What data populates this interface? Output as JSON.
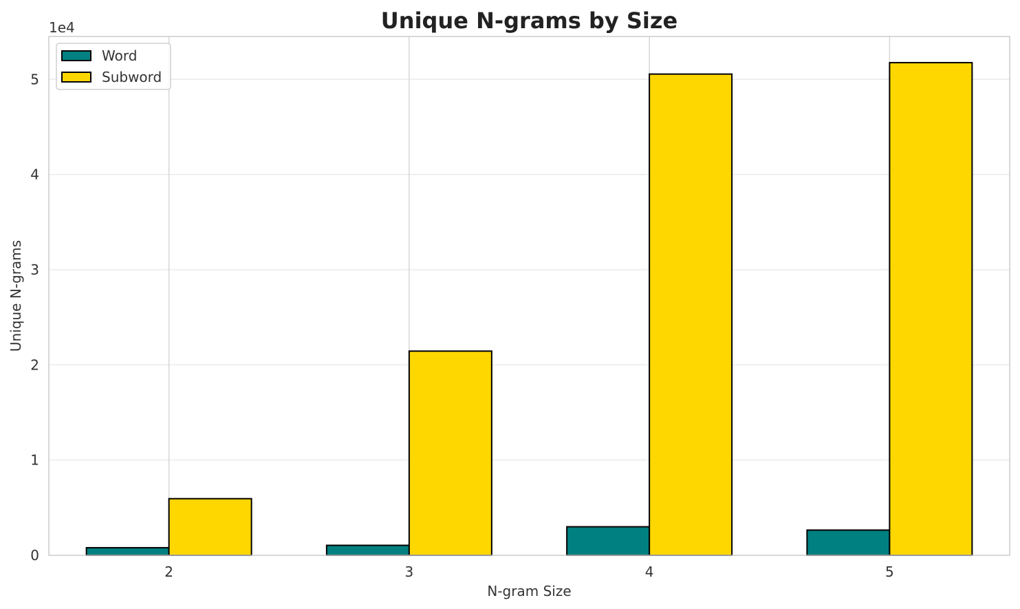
{
  "chart_data": {
    "type": "bar",
    "title": "Unique N-grams by Size",
    "xlabel": "N-gram Size",
    "ylabel": "Unique N-grams",
    "y_offset_label": "1e4",
    "categories": [
      "2",
      "3",
      "4",
      "5"
    ],
    "series": [
      {
        "name": "Word",
        "color": "#008080",
        "values": [
          800,
          1050,
          3000,
          2650
        ]
      },
      {
        "name": "Subword",
        "color": "#FFD700",
        "values": [
          5950,
          21450,
          50550,
          51750
        ]
      }
    ],
    "ylim": [
      0,
      54500
    ],
    "yticks": [
      0,
      10000,
      20000,
      30000,
      40000,
      50000
    ],
    "ytick_labels": [
      "0",
      "1",
      "2",
      "3",
      "4",
      "5"
    ],
    "grid": true,
    "legend_position": "top-left"
  }
}
